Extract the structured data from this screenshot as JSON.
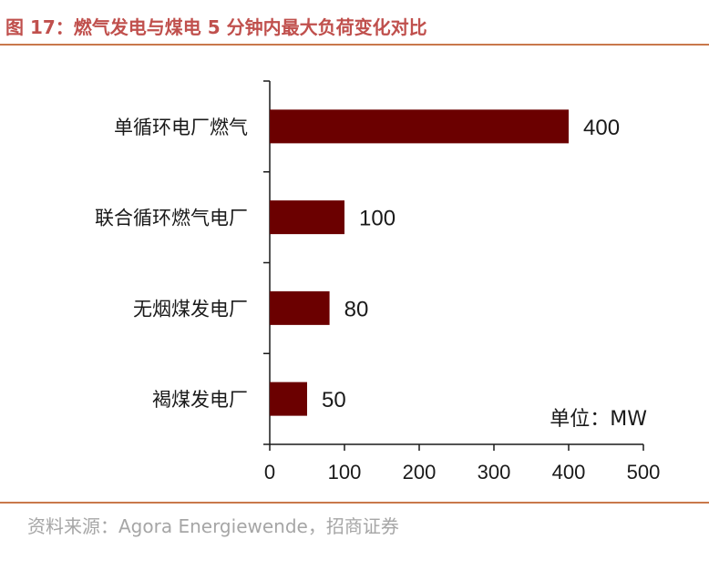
{
  "figure": {
    "title": "图 17：燃气发电与煤电 5 分钟内最大负荷变化对比",
    "source": "资料来源：Agora Energiewende，招商证券"
  },
  "colors": {
    "bar": "#6b0000",
    "title": "#c0504d",
    "rule": "#c9784b",
    "axis": "#1a1a1a"
  },
  "chart_data": {
    "type": "bar",
    "orientation": "horizontal",
    "categories": [
      "单循环电厂燃气",
      "联合循环燃气电厂",
      "无烟煤发电厂",
      "褐煤发电厂"
    ],
    "values": [
      400,
      100,
      80,
      50
    ],
    "xticks": [
      0,
      100,
      200,
      300,
      400,
      500
    ],
    "xlim": [
      0,
      500
    ],
    "unit_note": "单位：MW",
    "grid": false,
    "legend": "none"
  }
}
